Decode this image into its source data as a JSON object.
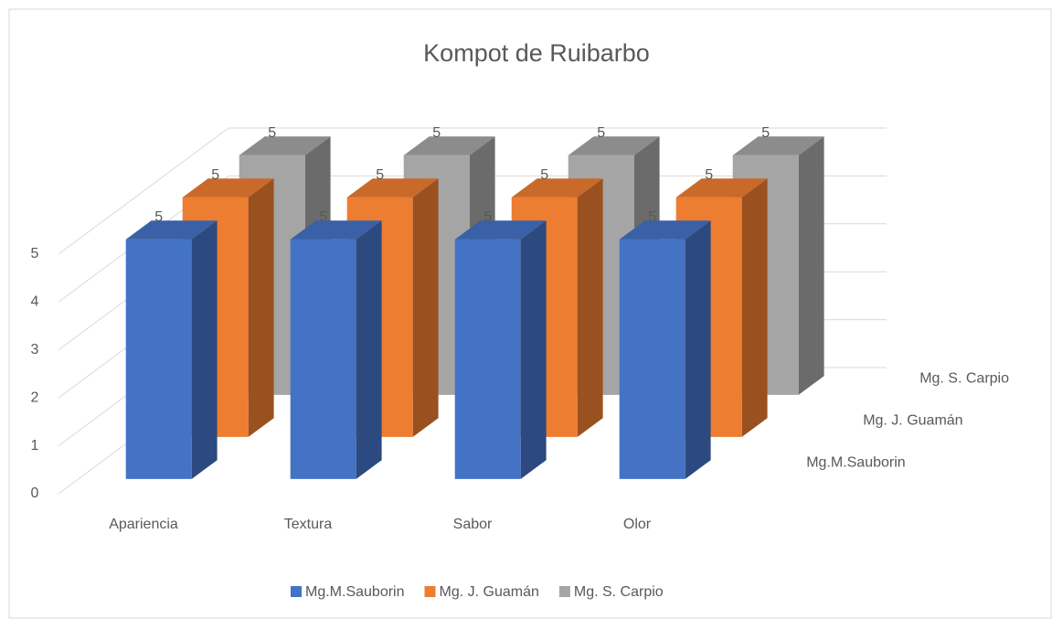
{
  "chart_data": {
    "type": "bar3d",
    "title": "Kompot de Ruibarbo",
    "categories": [
      "Apariencia",
      "Textura",
      "Sabor",
      "Olor"
    ],
    "series": [
      {
        "name": "Mg.M.Sauborin",
        "color": "#4472c4",
        "values": [
          5,
          5,
          5,
          5
        ]
      },
      {
        "name": "Mg. J. Guamán",
        "color": "#ed7d31",
        "values": [
          5,
          5,
          5,
          5
        ]
      },
      {
        "name": "Mg. S. Carpio",
        "color": "#a5a5a5",
        "values": [
          5,
          5,
          5,
          5
        ]
      }
    ],
    "ylim": [
      0,
      5
    ],
    "yticks": [
      0,
      1,
      2,
      3,
      4,
      5
    ],
    "grid": true,
    "legend": "bottom"
  }
}
